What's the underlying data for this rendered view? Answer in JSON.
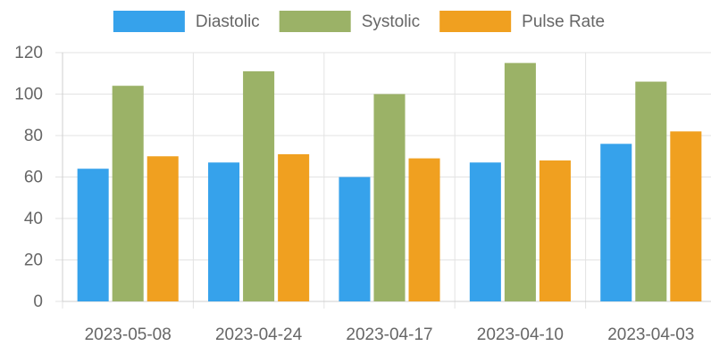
{
  "chart_data": {
    "type": "bar",
    "categories": [
      "2023-05-08",
      "2023-04-24",
      "2023-04-17",
      "2023-04-10",
      "2023-04-03"
    ],
    "series": [
      {
        "name": "Diastolic",
        "color": "#36A2EB",
        "values": [
          64,
          67,
          60,
          67,
          76
        ]
      },
      {
        "name": "Systolic",
        "color": "#9BB267",
        "values": [
          104,
          111,
          100,
          115,
          106
        ]
      },
      {
        "name": "Pulse Rate",
        "color": "#F0A020",
        "values": [
          70,
          71,
          69,
          68,
          82
        ]
      }
    ],
    "ylim": [
      0,
      120
    ],
    "yticks": [
      0,
      20,
      40,
      60,
      80,
      100,
      120
    ],
    "grid": true,
    "legend_position": "top-center"
  }
}
